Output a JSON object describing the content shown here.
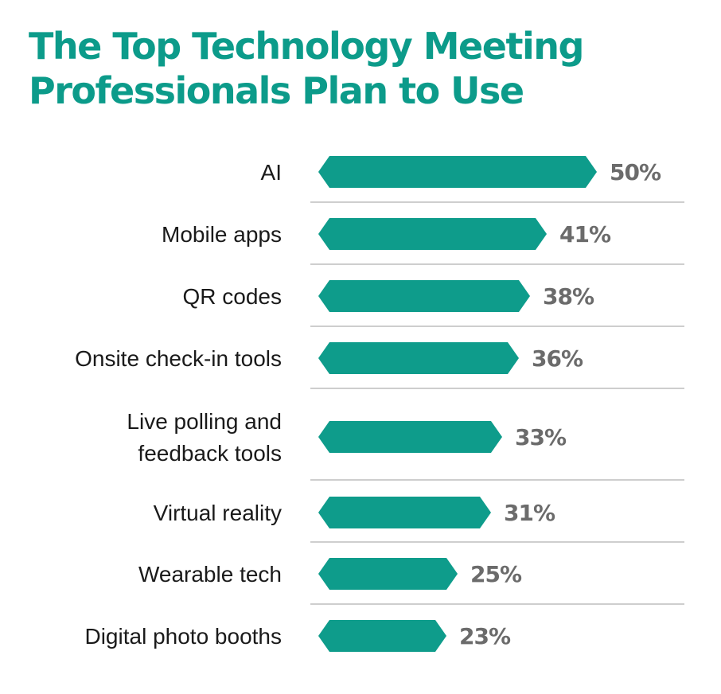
{
  "title_lines": [
    "The Top Technology Meeting",
    "Professionals Plan to Use"
  ],
  "colors": {
    "accent": "#0c9b8a",
    "bar": "#0e9c8b",
    "value_text": "#6b6b6b",
    "label_text": "#1a1a1a",
    "divider": "#bdbdbd"
  },
  "chart_data": {
    "type": "bar",
    "orientation": "horizontal",
    "title": "The Top Technology Meeting Professionals Plan to Use",
    "categories": [
      [
        "AI"
      ],
      [
        "Mobile apps"
      ],
      [
        "QR codes"
      ],
      [
        "Onsite check-in tools"
      ],
      [
        "Live polling and",
        "feedback tools"
      ],
      [
        "Virtual reality"
      ],
      [
        "Wearable tech"
      ],
      [
        "Digital photo booths"
      ]
    ],
    "values": [
      50,
      41,
      38,
      36,
      33,
      31,
      25,
      23
    ],
    "value_labels": [
      "50%",
      "41%",
      "38%",
      "36%",
      "33%",
      "31%",
      "25%",
      "23%"
    ],
    "unit": "%",
    "xlim": [
      0,
      50
    ],
    "grid": false,
    "legend": "none"
  }
}
